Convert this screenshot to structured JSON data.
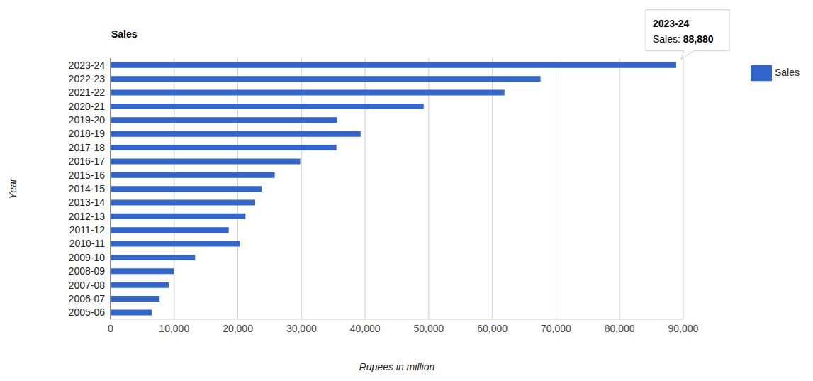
{
  "chart_data": {
    "type": "bar",
    "title": "Sales",
    "orientation": "horizontal",
    "x_label": "Rupees in million",
    "y_label": "Year",
    "categories": [
      "2023-24",
      "2022-23",
      "2021-22",
      "2020-21",
      "2019-20",
      "2018-19",
      "2017-18",
      "2016-17",
      "2015-16",
      "2014-15",
      "2013-14",
      "2012-13",
      "2011-12",
      "2010-11",
      "2009-10",
      "2008-09",
      "2007-08",
      "2006-07",
      "2005-06"
    ],
    "series": [
      {
        "name": "Sales",
        "color": "#3366cc",
        "values": [
          88880,
          67570,
          61900,
          49200,
          35600,
          39300,
          35500,
          29800,
          25800,
          23740,
          22730,
          21200,
          18570,
          20290,
          13290,
          9940,
          9130,
          7710,
          6490
        ]
      }
    ],
    "xlim": [
      0,
      90000
    ],
    "xticks": [
      0,
      {
        "value": 10000,
        "label": "10,000"
      },
      {
        "value": 20000,
        "label": "20,000"
      },
      {
        "value": 30000,
        "label": "30,000"
      },
      {
        "value": 40000,
        "label": "40,000"
      },
      {
        "value": 50000,
        "label": "50,000"
      },
      {
        "value": 60000,
        "label": "60,000"
      },
      {
        "value": 70000,
        "label": "70,000"
      },
      {
        "value": 80000,
        "label": "80,000"
      },
      {
        "value": 90000,
        "label": "90,000"
      }
    ],
    "grid": true,
    "legend": "upper right",
    "annotations": [
      {
        "category": "2023-24",
        "text": "Sales: 88,880"
      }
    ]
  }
}
